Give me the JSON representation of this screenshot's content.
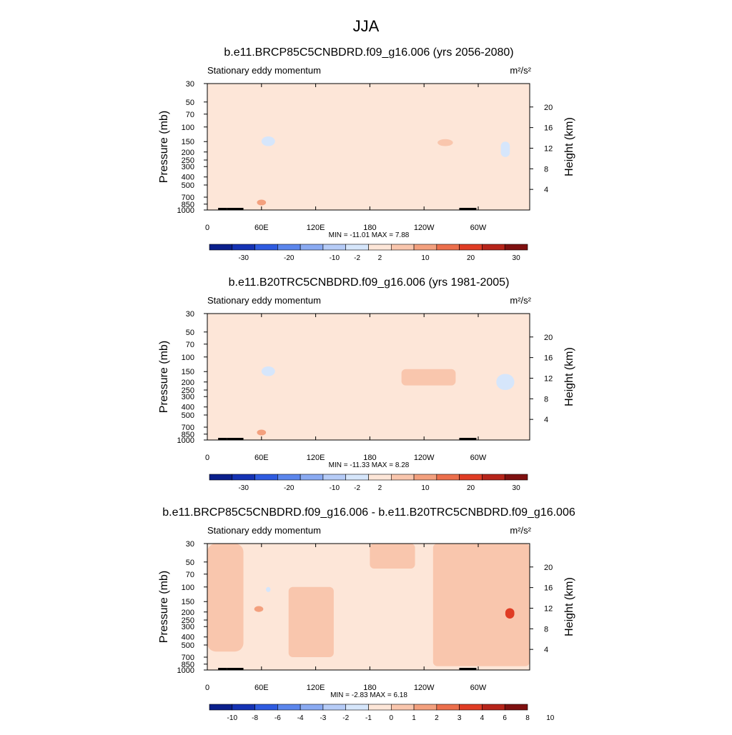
{
  "figure": {
    "title": "JJA",
    "colors": {
      "abs_scale": [
        "#0a1f8c",
        "#1432b4",
        "#2e5be0",
        "#5b86ec",
        "#8aaaf2",
        "#b6ccf7",
        "#d6e6fb",
        "#fde6d8",
        "#f9c6ad",
        "#f3a07e",
        "#ec6f4c",
        "#e03c24",
        "#b7241a",
        "#7f1010"
      ],
      "diff_scale": [
        "#0a1f8c",
        "#1432b4",
        "#2e5be0",
        "#5b86ec",
        "#8aaaf2",
        "#b6ccf7",
        "#d6e6fb",
        "#fde6d8",
        "#f9c6ad",
        "#f3a07e",
        "#ec6f4c",
        "#e03c24",
        "#b7241a",
        "#7f1010"
      ]
    }
  },
  "chart_data": [
    {
      "type": "heatmap",
      "title": "b.e11.BRCP85C5CNBDRD.f09_g16.006 (yrs 2056-2080)",
      "subtitle": "Stationary eddy momentum",
      "units": "m²/s²",
      "ylabel": "Pressure (mb)",
      "ylabel_right": "Height (km)",
      "x_ticks": [
        "0",
        "60E",
        "120E",
        "180",
        "120W",
        "60W"
      ],
      "x_tick_values": [
        0,
        60,
        120,
        180,
        240,
        300
      ],
      "xlim": [
        0,
        357
      ],
      "y_ticks": [
        "30",
        "50",
        "70",
        "100",
        "150",
        "200",
        "250",
        "300",
        "400",
        "500",
        "700",
        "850",
        "1000"
      ],
      "y_tick_values": [
        30,
        50,
        70,
        100,
        150,
        200,
        250,
        300,
        400,
        500,
        700,
        850,
        1000
      ],
      "ylim": [
        1000,
        30
      ],
      "y_scale": "log",
      "height_ticks": [
        "4",
        "8",
        "12",
        "16",
        "20"
      ],
      "height_tick_values": [
        4,
        8,
        12,
        16,
        20
      ],
      "stats": "MIN = -11.01  MAX =   7.88",
      "min": -11.01,
      "max": 7.88,
      "colorbar_labels": [
        "-30",
        "-20",
        "-10",
        "-2",
        "2",
        "10",
        "20",
        "30"
      ],
      "colorbar_boundaries": [
        -35,
        -30,
        -25,
        -20,
        -15,
        -10,
        -5,
        -2,
        2,
        5,
        10,
        15,
        20,
        25,
        30
      ],
      "background_value": -1,
      "regions": [
        {
          "lon": [
            0,
            20
          ],
          "p": [
            30,
            300
          ],
          "value": 1
        },
        {
          "lon": [
            115,
            170
          ],
          "p": [
            30,
            1000
          ],
          "value": -1
        },
        {
          "lon": [
            60,
            75
          ],
          "p": [
            130,
            170
          ],
          "value": -5
        },
        {
          "lon": [
            20,
            60
          ],
          "p": [
            200,
            400
          ],
          "value": 1
        },
        {
          "lon": [
            170,
            360
          ],
          "p": [
            30,
            500
          ],
          "value": 1
        },
        {
          "lon": [
            255,
            272
          ],
          "p": [
            140,
            170
          ],
          "value": 4
        },
        {
          "lon": [
            325,
            335
          ],
          "p": [
            150,
            230
          ],
          "value": -3
        },
        {
          "lon": [
            55,
            65
          ],
          "p": [
            750,
            880
          ],
          "value": 5
        }
      ]
    },
    {
      "type": "heatmap",
      "title": "b.e11.B20TRC5CNBDRD.f09_g16.006 (yrs 1981-2005)",
      "subtitle": "Stationary eddy momentum",
      "units": "m²/s²",
      "ylabel": "Pressure (mb)",
      "ylabel_right": "Height (km)",
      "x_ticks": [
        "0",
        "60E",
        "120E",
        "180",
        "120W",
        "60W"
      ],
      "x_tick_values": [
        0,
        60,
        120,
        180,
        240,
        300
      ],
      "xlim": [
        0,
        357
      ],
      "y_ticks": [
        "30",
        "50",
        "70",
        "100",
        "150",
        "200",
        "250",
        "300",
        "400",
        "500",
        "700",
        "850",
        "1000"
      ],
      "y_tick_values": [
        30,
        50,
        70,
        100,
        150,
        200,
        250,
        300,
        400,
        500,
        700,
        850,
        1000
      ],
      "ylim": [
        1000,
        30
      ],
      "y_scale": "log",
      "height_ticks": [
        "4",
        "8",
        "12",
        "16",
        "20"
      ],
      "height_tick_values": [
        4,
        8,
        12,
        16,
        20
      ],
      "stats": "MIN = -11.33  MAX =   8.28",
      "min": -11.33,
      "max": 8.28,
      "colorbar_labels": [
        "-30",
        "-20",
        "-10",
        "-2",
        "2",
        "10",
        "20",
        "30"
      ],
      "colorbar_boundaries": [
        -35,
        -30,
        -25,
        -20,
        -15,
        -10,
        -5,
        -2,
        2,
        5,
        10,
        15,
        20,
        25,
        30
      ],
      "background_value": -1,
      "regions": [
        {
          "lon": [
            0,
            20
          ],
          "p": [
            30,
            300
          ],
          "value": 1
        },
        {
          "lon": [
            115,
            175
          ],
          "p": [
            30,
            1000
          ],
          "value": -1
        },
        {
          "lon": [
            60,
            75
          ],
          "p": [
            130,
            170
          ],
          "value": -5
        },
        {
          "lon": [
            20,
            60
          ],
          "p": [
            200,
            400
          ],
          "value": 1
        },
        {
          "lon": [
            175,
            360
          ],
          "p": [
            30,
            500
          ],
          "value": 1
        },
        {
          "lon": [
            215,
            275
          ],
          "p": [
            140,
            220
          ],
          "value": 4
        },
        {
          "lon": [
            320,
            340
          ],
          "p": [
            160,
            250
          ],
          "value": -4
        },
        {
          "lon": [
            55,
            65
          ],
          "p": [
            750,
            880
          ],
          "value": 5
        }
      ]
    },
    {
      "type": "heatmap",
      "title": "b.e11.BRCP85C5CNBDRD.f09_g16.006 - b.e11.B20TRC5CNBDRD.f09_g16.006",
      "subtitle": "Stationary eddy momentum",
      "units": "m²/s²",
      "ylabel": "Pressure (mb)",
      "ylabel_right": "Height (km)",
      "x_ticks": [
        "0",
        "60E",
        "120E",
        "180",
        "120W",
        "60W"
      ],
      "x_tick_values": [
        0,
        60,
        120,
        180,
        240,
        300
      ],
      "xlim": [
        0,
        357
      ],
      "y_ticks": [
        "30",
        "50",
        "70",
        "100",
        "150",
        "200",
        "250",
        "300",
        "400",
        "500",
        "700",
        "850",
        "1000"
      ],
      "y_tick_values": [
        30,
        50,
        70,
        100,
        150,
        200,
        250,
        300,
        400,
        500,
        700,
        850,
        1000
      ],
      "ylim": [
        1000,
        30
      ],
      "y_scale": "log",
      "height_ticks": [
        "4",
        "8",
        "12",
        "16",
        "20"
      ],
      "height_tick_values": [
        4,
        8,
        12,
        16,
        20
      ],
      "stats": "MIN =  -2.83  MAX =   6.18",
      "min": -2.83,
      "max": 6.18,
      "colorbar_labels": [
        "-10",
        "-8",
        "-6",
        "-4",
        "-3",
        "-2",
        "-1",
        "0",
        "1",
        "2",
        "3",
        "4",
        "6",
        "8",
        "10"
      ],
      "colorbar_boundaries": [
        -12,
        -10,
        -8,
        -6,
        -4,
        -3,
        -2,
        -1,
        0,
        1,
        2,
        3,
        4,
        6,
        8,
        10
      ],
      "background_value": -0.5,
      "regions": [
        {
          "lon": [
            0,
            40
          ],
          "p": [
            30,
            600
          ],
          "value": 0.5
        },
        {
          "lon": [
            90,
            140
          ],
          "p": [
            100,
            700
          ],
          "value": 0.5
        },
        {
          "lon": [
            180,
            230
          ],
          "p": [
            30,
            60
          ],
          "value": 0.5
        },
        {
          "lon": [
            250,
            360
          ],
          "p": [
            30,
            900
          ],
          "value": 0.5
        },
        {
          "lon": [
            52,
            62
          ],
          "p": [
            170,
            200
          ],
          "value": 1.5
        },
        {
          "lon": [
            65,
            70
          ],
          "p": [
            100,
            115
          ],
          "value": -1.5
        },
        {
          "lon": [
            330,
            340
          ],
          "p": [
            180,
            240
          ],
          "value": 3
        }
      ]
    }
  ]
}
